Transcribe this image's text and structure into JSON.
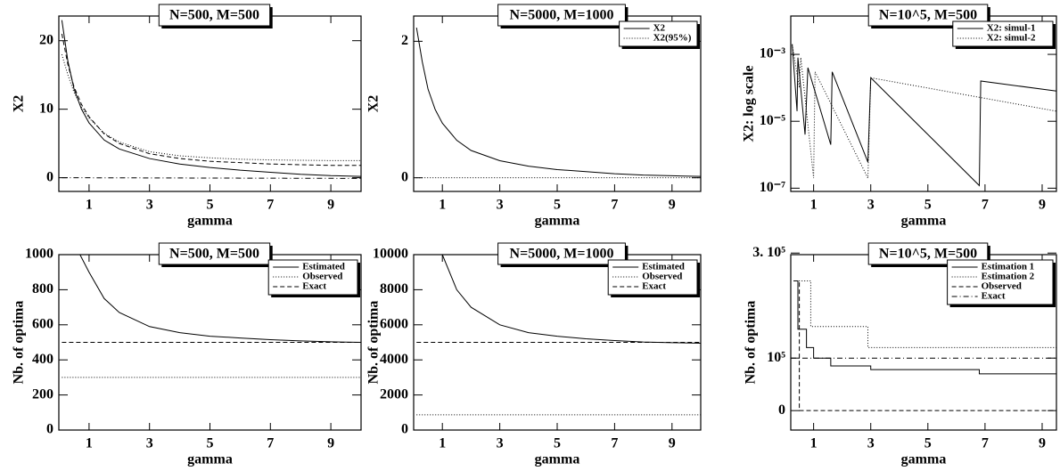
{
  "chart_data": [
    {
      "type": "line",
      "title": "N=500, M=500",
      "xlabel": "gamma",
      "ylabel": "X2",
      "xlim": [
        0,
        10
      ],
      "xticks": [
        1,
        3,
        5,
        7,
        9
      ],
      "ylim": [
        -2,
        23.6
      ],
      "yticks": [
        0,
        10,
        20
      ],
      "series": [
        {
          "style": "solid",
          "color": "#000000",
          "x": [
            0.1,
            0.3,
            0.5,
            0.75,
            1,
            1.5,
            2,
            3,
            4,
            5,
            6,
            7,
            8,
            9,
            10
          ],
          "values": [
            23,
            17,
            13,
            10,
            8,
            5.5,
            4.2,
            2.8,
            2,
            1.5,
            1.1,
            0.8,
            0.5,
            0.3,
            0.2
          ]
        },
        {
          "style": "dotted",
          "color": "#000000",
          "x": [
            0.1,
            0.3,
            0.5,
            0.75,
            1,
            1.5,
            2,
            3,
            4,
            5,
            6,
            7,
            8,
            9,
            10
          ],
          "values": [
            18,
            15,
            12.5,
            10.3,
            8.7,
            6.5,
            5.2,
            3.8,
            3.2,
            2.9,
            2.7,
            2.6,
            2.55,
            2.5,
            2.5
          ]
        },
        {
          "style": "dashed",
          "color": "#000000",
          "x": [
            0.1,
            0.3,
            0.5,
            0.75,
            1,
            1.5,
            2,
            3,
            4,
            5,
            6,
            7,
            8,
            9,
            10
          ],
          "values": [
            21,
            16.5,
            13.3,
            10.7,
            8.9,
            6.4,
            5,
            3.5,
            2.8,
            2.4,
            2.2,
            2,
            1.9,
            1.8,
            1.8
          ]
        },
        {
          "style": "dashdot",
          "color": "#000000",
          "x": [
            0.1,
            10
          ],
          "values": [
            0,
            -0.1
          ]
        }
      ]
    },
    {
      "type": "line",
      "title": "N=5000, M=1000",
      "xlabel": "gamma",
      "ylabel": "X2",
      "legend": "upper right",
      "xlim": [
        0,
        10
      ],
      "xticks": [
        1,
        3,
        5,
        7,
        9
      ],
      "ylim": [
        -0.2,
        2.37
      ],
      "yticks": [
        0,
        2
      ],
      "series": [
        {
          "name": "X2",
          "style": "solid",
          "color": "#000000",
          "x": [
            0.1,
            0.3,
            0.5,
            0.75,
            1,
            1.5,
            2,
            3,
            4,
            5,
            6,
            7,
            8,
            9,
            10
          ],
          "values": [
            2.2,
            1.7,
            1.3,
            1,
            0.8,
            0.55,
            0.4,
            0.25,
            0.17,
            0.12,
            0.09,
            0.06,
            0.04,
            0.03,
            0.02
          ]
        },
        {
          "name": "X2(95%)",
          "style": "dotted",
          "color": "#000000",
          "x": [
            0.1,
            10
          ],
          "values": [
            0,
            0
          ]
        }
      ]
    },
    {
      "type": "line",
      "title": "N=10^5, M=500",
      "xlabel": "gamma",
      "ylabel": "X2: log scale",
      "legend": "upper right",
      "ylog": true,
      "xlim": [
        0.2,
        9.5
      ],
      "xticks": [
        1,
        3,
        5,
        7,
        9
      ],
      "ylim": [
        8e-08,
        0.014
      ],
      "yticks": [
        {
          "value": 0.001,
          "label": "10⁻³"
        },
        {
          "value": 1e-05,
          "label": "10⁻⁵"
        },
        {
          "value": 1e-07,
          "label": "10⁻⁷"
        }
      ],
      "series": [
        {
          "name": "X2: simul-1",
          "style": "solid",
          "color": "#000000",
          "x": [
            0.25,
            0.42,
            0.45,
            0.7,
            0.8,
            1.6,
            1.65,
            2.9,
            3.0,
            6.8,
            6.85,
            9.5
          ],
          "values": [
            0.002,
            2e-05,
            0.0008,
            4e-06,
            0.0004,
            2e-06,
            0.0003,
            6e-07,
            0.0002,
            1.2e-07,
            0.00016,
            8e-05
          ]
        },
        {
          "name": "X2: simul-2",
          "style": "dotted",
          "color": "#000000",
          "x": [
            0.25,
            0.5,
            0.55,
            1.0,
            1.05,
            2.9,
            3.0,
            9.5
          ],
          "values": [
            0.002,
            0.0001,
            0.0008,
            2e-07,
            0.0003,
            2e-07,
            0.0002,
            2e-05
          ]
        }
      ]
    },
    {
      "type": "line",
      "title": "N=500, M=500",
      "xlabel": "gamma",
      "ylabel": "Nb. of optima",
      "legend": "upper right",
      "xlim": [
        0,
        10
      ],
      "xticks": [
        1,
        3,
        5,
        7,
        9
      ],
      "ylim": [
        0,
        1000
      ],
      "yticks": [
        0,
        200,
        400,
        600,
        800,
        1000
      ],
      "series": [
        {
          "name": "Estimated",
          "style": "solid",
          "color": "#000000",
          "x": [
            0.7,
            1,
            1.5,
            2,
            3,
            4,
            5,
            6,
            7,
            8,
            9,
            10
          ],
          "values": [
            1000,
            900,
            750,
            670,
            590,
            555,
            535,
            525,
            515,
            508,
            503,
            500
          ]
        },
        {
          "name": "Observed",
          "style": "dotted",
          "color": "#000000",
          "x": [
            0.1,
            10
          ],
          "values": [
            300,
            300
          ]
        },
        {
          "name": "Exact",
          "style": "dashed",
          "color": "#000000",
          "x": [
            0.1,
            10
          ],
          "values": [
            500,
            500
          ]
        }
      ]
    },
    {
      "type": "line",
      "title": "N=5000, M=1000",
      "xlabel": "gamma",
      "ylabel": "Nb. of optima",
      "legend": "upper right",
      "xlim": [
        0,
        10
      ],
      "xticks": [
        1,
        3,
        5,
        7,
        9
      ],
      "ylim": [
        0,
        10000
      ],
      "yticks": [
        0,
        2000,
        4000,
        6000,
        8000,
        10000
      ],
      "series": [
        {
          "name": "Estimated",
          "style": "solid",
          "color": "#000000",
          "x": [
            1,
            1.5,
            2,
            3,
            4,
            5,
            6,
            7,
            8,
            9,
            10
          ],
          "values": [
            10000,
            8000,
            7000,
            6000,
            5550,
            5350,
            5200,
            5100,
            5020,
            4980,
            4950
          ]
        },
        {
          "name": "Observed",
          "style": "dotted",
          "color": "#000000",
          "x": [
            0.1,
            10
          ],
          "values": [
            870,
            870
          ]
        },
        {
          "name": "Exact",
          "style": "dashed",
          "color": "#000000",
          "x": [
            0.1,
            10
          ],
          "values": [
            5000,
            5000
          ]
        }
      ]
    },
    {
      "type": "line",
      "title": "N=10^5, M=500",
      "xlabel": "gamma",
      "ylabel": "Nb. of optima",
      "legend": "upper right",
      "xlim": [
        0.2,
        9.5
      ],
      "xticks": [
        1,
        3,
        5,
        7,
        9
      ],
      "ylim": [
        -37000,
        297000
      ],
      "yticks": [
        0,
        {
          "value": 100000,
          "label": "10⁵"
        },
        {
          "value": 300000,
          "label": "3. 10⁵"
        }
      ],
      "series": [
        {
          "name": "Estimation 1",
          "style": "solid",
          "color": "#000000",
          "x": [
            0.3,
            0.45,
            0.45,
            0.75,
            0.75,
            1.0,
            1.0,
            1.6,
            1.6,
            3.0,
            3.0,
            6.8,
            6.8,
            9.5
          ],
          "values": [
            247000,
            247000,
            155000,
            155000,
            120000,
            120000,
            100000,
            100000,
            85000,
            85000,
            78000,
            78000,
            70000,
            70000
          ]
        },
        {
          "name": "Estimation 2",
          "style": "dotted",
          "color": "#000000",
          "x": [
            0.3,
            0.9,
            0.9,
            2.9,
            2.9,
            9.5
          ],
          "values": [
            247000,
            247000,
            160000,
            160000,
            120000,
            120000
          ]
        },
        {
          "name": "Observed",
          "style": "dashed",
          "color": "#000000",
          "x": [
            0.3,
            0.5,
            0.5,
            9.5
          ],
          "values": [
            247000,
            247000,
            0,
            0
          ]
        },
        {
          "name": "Exact",
          "style": "dashdot",
          "color": "#000000",
          "x": [
            0.2,
            9.5
          ],
          "values": [
            100000,
            100000
          ]
        }
      ]
    }
  ]
}
